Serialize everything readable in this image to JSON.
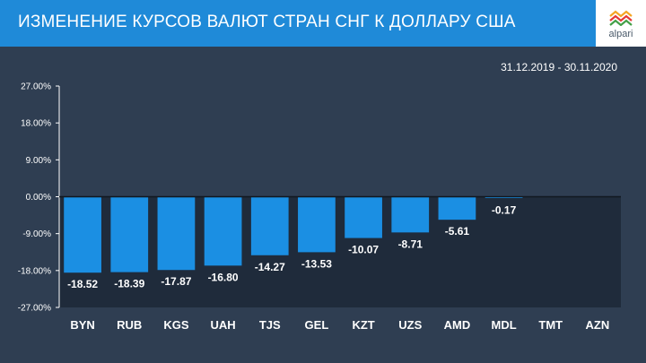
{
  "header": {
    "title": "ИЗМЕНЕНИЕ КУРСОВ ВАЛЮТ СТРАН СНГ К ДОЛЛАРУ США",
    "logo_text": "alpari",
    "logo_icon": "alpari-logo-icon"
  },
  "period": {
    "start": "31.12.2019",
    "separator": " - ",
    "end": "30.11.2020"
  },
  "colors": {
    "header_bg": "#1f8ad8",
    "background": "#2f3e52",
    "plot_bg": "#1f2b3b",
    "bar": "#1b8fe3",
    "text": "#ffffff"
  },
  "chart_data": {
    "type": "bar",
    "title": "ИЗМЕНЕНИЕ КУРСОВ ВАЛЮТ СТРАН СНГ К ДОЛЛАРУ США",
    "categories": [
      "BYN",
      "RUB",
      "KGS",
      "UAH",
      "TJS",
      "GEL",
      "KZT",
      "UZS",
      "AMD",
      "MDL",
      "TMT",
      "AZN"
    ],
    "values": [
      -18.52,
      -18.39,
      -17.87,
      -16.8,
      -14.27,
      -13.53,
      -10.07,
      -8.71,
      -5.61,
      -0.17,
      null,
      null
    ],
    "value_labels": [
      "-18.52",
      "-18.39",
      "-17.87",
      "-16.80",
      "-14.27",
      "-13.53",
      "-10.07",
      "-8.71",
      "-5.61",
      "-0.17",
      "",
      ""
    ],
    "yticks": [
      "27.00%",
      "18.00%",
      "9.00%",
      "0.00%",
      "-9.00%",
      "-18.00%",
      "-27.00%"
    ],
    "ytick_values": [
      27,
      18,
      9,
      0,
      -9,
      -18,
      -27
    ],
    "ylim": [
      -27,
      27
    ],
    "grid": false,
    "legend": "none"
  }
}
